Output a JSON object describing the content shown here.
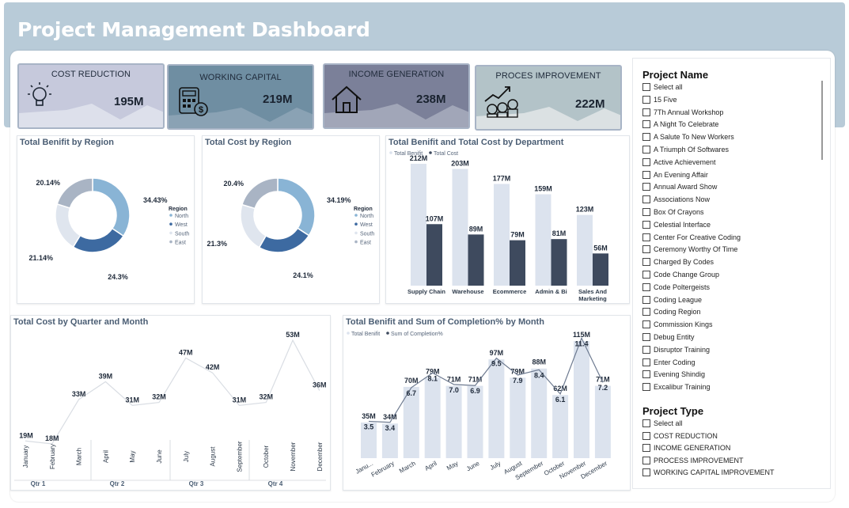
{
  "title": "Project Management Dashboard",
  "cards": [
    {
      "label": "COST REDUCTION",
      "value": "195M",
      "icon": "lightbulb-icon",
      "bg": "#c6c9dc"
    },
    {
      "label": "WORKING CAPITAL",
      "value": "219M",
      "icon": "calculator-icon",
      "bg": "#6f8ea2"
    },
    {
      "label": "INCOME GENERATION",
      "value": "238M",
      "icon": "house-icon",
      "bg": "#7b8099"
    },
    {
      "label": "PROCES IMPROVEMENT",
      "value": "222M",
      "icon": "growth-coins-icon",
      "bg": "#b3c3c8"
    }
  ],
  "region_colors": {
    "North": "#89b4d5",
    "West": "#3d6aa1",
    "South": "#dfe5ee",
    "East": "#a9b4c4"
  },
  "benefit_region": {
    "title": "Total Benifit by Region",
    "legend_title": "Region",
    "slices": [
      {
        "name": "North",
        "pct": 34.43,
        "label": "34.43%"
      },
      {
        "name": "West",
        "pct": 24.3,
        "label": "24.3%"
      },
      {
        "name": "South",
        "pct": 21.14,
        "label": "21.14%"
      },
      {
        "name": "East",
        "pct": 20.14,
        "label": "20.14%"
      }
    ]
  },
  "cost_region": {
    "title": "Total Cost by Region",
    "legend_title": "Region",
    "slices": [
      {
        "name": "North",
        "pct": 34.19,
        "label": "34.19%"
      },
      {
        "name": "West",
        "pct": 24.1,
        "label": "24.1%"
      },
      {
        "name": "South",
        "pct": 21.3,
        "label": "21.3%"
      },
      {
        "name": "East",
        "pct": 20.4,
        "label": "20.4%"
      }
    ]
  },
  "dept": {
    "title": "Total Benifit and Total Cost by Department",
    "legend": [
      "Total Benifit",
      "Total Cost"
    ],
    "colors": [
      "#dce3ee",
      "#3e4a5e"
    ],
    "categories": [
      "Supply Chain",
      "Warehouse",
      "Ecommerce",
      "Admin & Bi",
      "Sales And Marketing"
    ],
    "benefit": [
      212,
      203,
      177,
      159,
      123
    ],
    "cost": [
      107,
      89,
      79,
      81,
      56
    ],
    "benefit_labels": [
      "212M",
      "203M",
      "177M",
      "159M",
      "123M"
    ],
    "cost_labels": [
      "107M",
      "89M",
      "79M",
      "81M",
      "56M"
    ]
  },
  "quarter": {
    "title": "Total Cost by Quarter and Month",
    "months": [
      "January",
      "February",
      "March",
      "April",
      "May",
      "June",
      "July",
      "August",
      "September",
      "October",
      "November",
      "December"
    ],
    "values": [
      19,
      18,
      33,
      39,
      31,
      32,
      47,
      42,
      31,
      32,
      53,
      36
    ],
    "labels": [
      "19M",
      "18M",
      "33M",
      "39M",
      "31M",
      "32M",
      "47M",
      "42M",
      "31M",
      "32M",
      "53M",
      "36M"
    ],
    "quarters": [
      "Qtr 1",
      "Qtr 2",
      "Qtr 3",
      "Qtr 4"
    ]
  },
  "completion": {
    "title": "Total Benifit and Sum of Completion% by Month",
    "legend": [
      "Total Benifit",
      "Sum of Completion%"
    ],
    "months": [
      "January",
      "February",
      "March",
      "April",
      "May",
      "June",
      "July",
      "August",
      "September",
      "October",
      "November",
      "December"
    ],
    "tick_labels": [
      "Janu...",
      "February",
      "March",
      "April",
      "May",
      "June",
      "July",
      "August",
      "September",
      "October",
      "November",
      "December"
    ],
    "benefit": [
      35,
      34,
      70,
      79,
      71,
      71,
      97,
      79,
      88,
      62,
      115,
      71
    ],
    "benefit_labels": [
      "35M",
      "34M",
      "70M",
      "79M",
      "71M",
      "71M",
      "97M",
      "79M",
      "88M",
      "62M",
      "115M",
      "71M"
    ],
    "completion": [
      3.5,
      3.4,
      6.7,
      8.1,
      7.0,
      6.9,
      9.5,
      7.9,
      8.4,
      6.1,
      11.4,
      7.2
    ],
    "completion_labels": [
      "3.5",
      "3.4",
      "6.7",
      "8.1",
      "7.0",
      "6.9",
      "9.5",
      "7.9",
      "8.4",
      "6.1",
      "11.4",
      "7.2"
    ]
  },
  "project_name": {
    "title": "Project Name",
    "items": [
      "Select all",
      "15 Five",
      "7Th Annual Workshop",
      "A Night To Celebrate",
      "A Salute To New Workers",
      "A Triumph Of Softwares",
      "Active Achievement",
      "An Evening Affair",
      "Annual Award Show",
      "Associations Now",
      "Box Of Crayons",
      "Celestial Interface",
      "Center For Creative Coding",
      "Ceremony Worthy Of Time",
      "Charged By Codes",
      "Code Change Group",
      "Code Poltergeists",
      "Coding League",
      "Coding Region",
      "Commission Kings",
      "Debug Entity",
      "Disruptor Training",
      "Enter Coding",
      "Evening Shindig",
      "Excalibur Training"
    ]
  },
  "project_type": {
    "title": "Project Type",
    "items": [
      "Select all",
      "COST REDUCTION",
      "INCOME GENERATION",
      "PROCESS IMPROVEMENT",
      "WORKING CAPITAL IMPROVEMENT"
    ]
  }
}
